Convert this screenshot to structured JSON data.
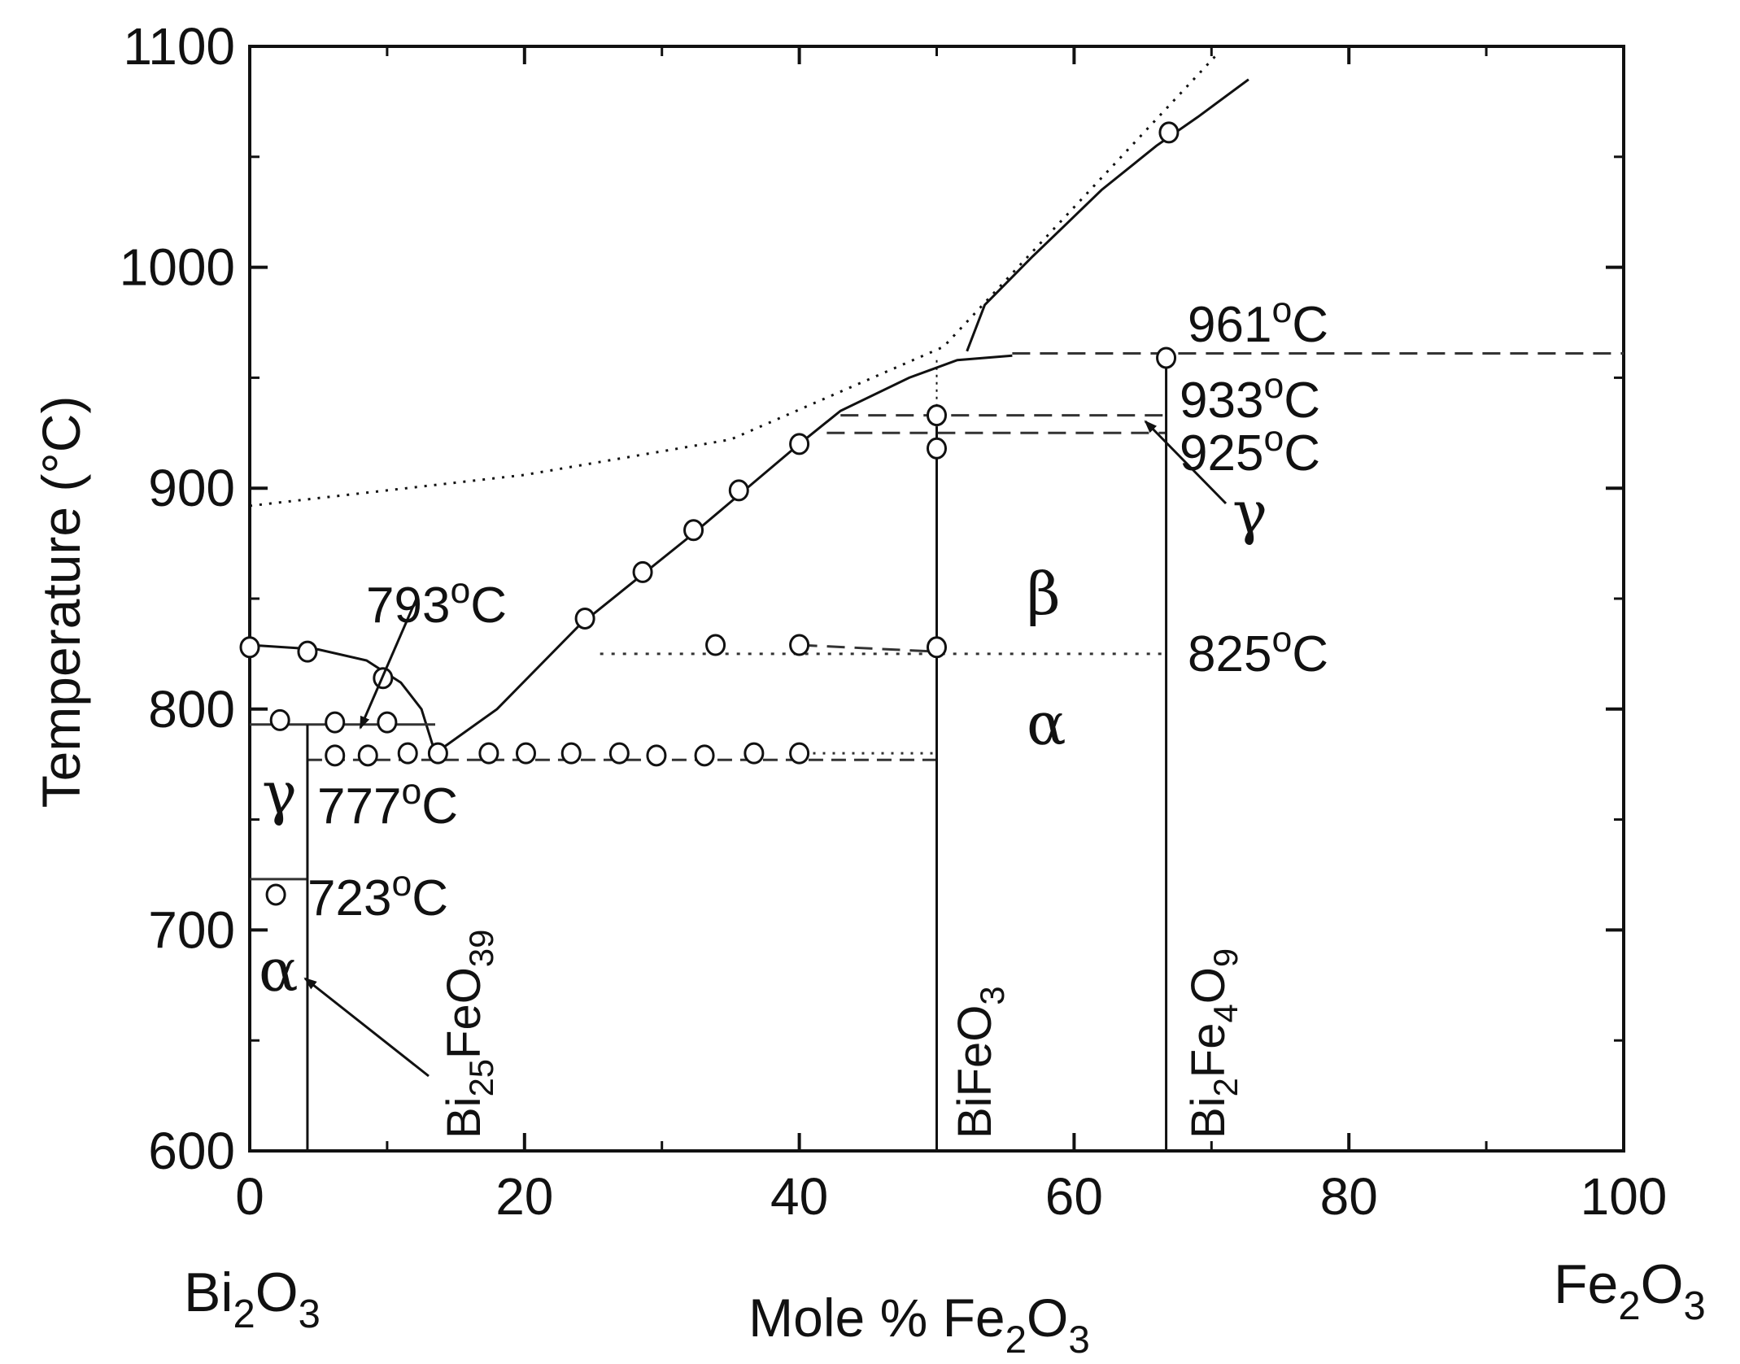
{
  "chart_data": {
    "type": "scatter",
    "title": "",
    "xlabel": "Mole % Fe2O3",
    "ylabel": "Temperature (°C)",
    "xlim": [
      0,
      100
    ],
    "ylim": [
      600,
      1100
    ],
    "xticks": [
      0,
      20,
      40,
      60,
      80,
      100
    ],
    "yticks": [
      600,
      700,
      800,
      900,
      1000,
      1100
    ],
    "x_tick_labels": [
      "0",
      "20",
      "40",
      "60",
      "80",
      "100"
    ],
    "y_tick_labels": [
      "600",
      "700",
      "800",
      "900",
      "1000",
      "1100"
    ],
    "grid": false,
    "end_labels": {
      "left": "Bi2O3",
      "right": "Fe2O3"
    },
    "series": [
      {
        "points": [
          [
            0,
            828
          ],
          [
            4.2,
            826
          ],
          [
            9.7,
            814
          ],
          [
            2.2,
            795
          ],
          [
            6.2,
            794
          ],
          [
            10,
            794
          ],
          [
            6.2,
            779
          ],
          [
            8.6,
            779
          ],
          [
            11.5,
            780
          ],
          [
            13.7,
            780
          ],
          [
            17.4,
            780
          ],
          [
            20.1,
            780
          ],
          [
            23.4,
            780
          ],
          [
            26.9,
            780
          ],
          [
            29.6,
            779
          ],
          [
            33.1,
            779
          ],
          [
            36.7,
            780
          ],
          [
            40,
            780
          ],
          [
            24.4,
            841
          ],
          [
            28.6,
            862
          ],
          [
            32.3,
            881
          ],
          [
            35.6,
            899
          ],
          [
            40,
            920
          ],
          [
            33.9,
            829
          ],
          [
            40,
            829
          ],
          [
            50,
            828
          ],
          [
            50,
            918
          ],
          [
            50,
            933
          ],
          [
            66.7,
            959
          ],
          [
            66.9,
            1061
          ],
          [
            1.9,
            716
          ]
        ]
      }
    ],
    "curves": {
      "liquidus_solid": [
        [
          13.5,
          780
        ],
        [
          18,
          800
        ],
        [
          24,
          838
        ],
        [
          32,
          878
        ],
        [
          40,
          920
        ],
        [
          43,
          935
        ],
        [
          48,
          950
        ],
        [
          51.5,
          958
        ],
        [
          55.5,
          960
        ]
      ],
      "liquidus_solid_upper": [
        [
          52.2,
          962
        ],
        [
          53.5,
          983
        ],
        [
          57,
          1005
        ],
        [
          59.5,
          1020
        ],
        [
          62,
          1035
        ],
        [
          66,
          1055
        ],
        [
          69,
          1068
        ],
        [
          72.7,
          1085
        ]
      ],
      "bi_rich_liquidus": [
        [
          0,
          829
        ],
        [
          5,
          827
        ],
        [
          8.5,
          822
        ],
        [
          11,
          812
        ],
        [
          12.5,
          800
        ],
        [
          13.5,
          780
        ]
      ],
      "dotted_upper": [
        [
          0,
          892
        ],
        [
          20,
          906
        ],
        [
          35,
          922
        ],
        [
          50.5,
          964
        ],
        [
          70.5,
          1097
        ]
      ],
      "bifeo3_connector": [
        [
          50,
          958
        ],
        [
          50,
          935
        ]
      ]
    },
    "horizontal_lines": [
      {
        "temp": 961,
        "x_from": 55.5,
        "x_to": 100,
        "style": "dashed"
      },
      {
        "temp": 933,
        "x_from": 43,
        "x_to": 66.7,
        "style": "dashed"
      },
      {
        "temp": 925,
        "x_from": 42,
        "x_to": 66.7,
        "style": "dashed"
      },
      {
        "temp": 825,
        "x_from": 25.5,
        "x_to": 66.7,
        "style": "dotted-dashed"
      },
      {
        "temp": 793,
        "x_from": 0,
        "x_to": 13.5,
        "style": "solid"
      },
      {
        "temp": 777,
        "x_from": 4.2,
        "x_to": 50,
        "style": "dashed-dotted"
      },
      {
        "temp": 723,
        "x_from": 0,
        "x_to": 4.2,
        "style": "solid"
      }
    ],
    "vertical_lines": [
      {
        "x": 4.2,
        "from": 600,
        "to": 793
      },
      {
        "x": 50,
        "from": 600,
        "to": 928
      },
      {
        "x": 66.7,
        "from": 600,
        "to": 961
      }
    ],
    "temperature_labels": [
      "961°C",
      "933°C",
      "925°C",
      "825°C",
      "793°C",
      "777°C",
      "723°C"
    ],
    "phase_labels": [
      "β",
      "α",
      "γ",
      "γ",
      "α"
    ],
    "compound_labels": [
      "Bi25FeO39",
      "BiFeO3",
      "Bi2Fe4O9"
    ]
  }
}
